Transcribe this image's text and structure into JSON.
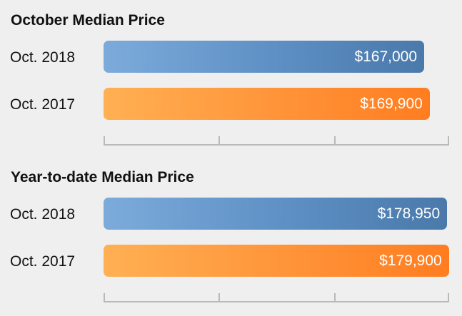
{
  "chart_data": [
    {
      "type": "bar",
      "orientation": "horizontal",
      "title": "October Median Price",
      "categories": [
        "Oct. 2018",
        "Oct. 2017"
      ],
      "values": [
        167000,
        169900
      ],
      "value_labels": [
        "$167,000",
        "$169,900"
      ],
      "colors": [
        "#5d8fc4",
        "#ff8f32"
      ],
      "xlim": [
        0,
        180000
      ],
      "tick_values": [
        0,
        60000,
        120000,
        180000
      ],
      "grid": false
    },
    {
      "type": "bar",
      "orientation": "horizontal",
      "title": "Year-to-date Median Price",
      "categories": [
        "Oct. 2018",
        "Oct. 2017"
      ],
      "values": [
        178950,
        179900
      ],
      "value_labels": [
        "$178,950",
        "$179,900"
      ],
      "colors": [
        "#5d8fc4",
        "#ff8f32"
      ],
      "xlim": [
        0,
        180000
      ],
      "tick_values": [
        0,
        60000,
        120000,
        180000
      ],
      "grid": false
    }
  ]
}
